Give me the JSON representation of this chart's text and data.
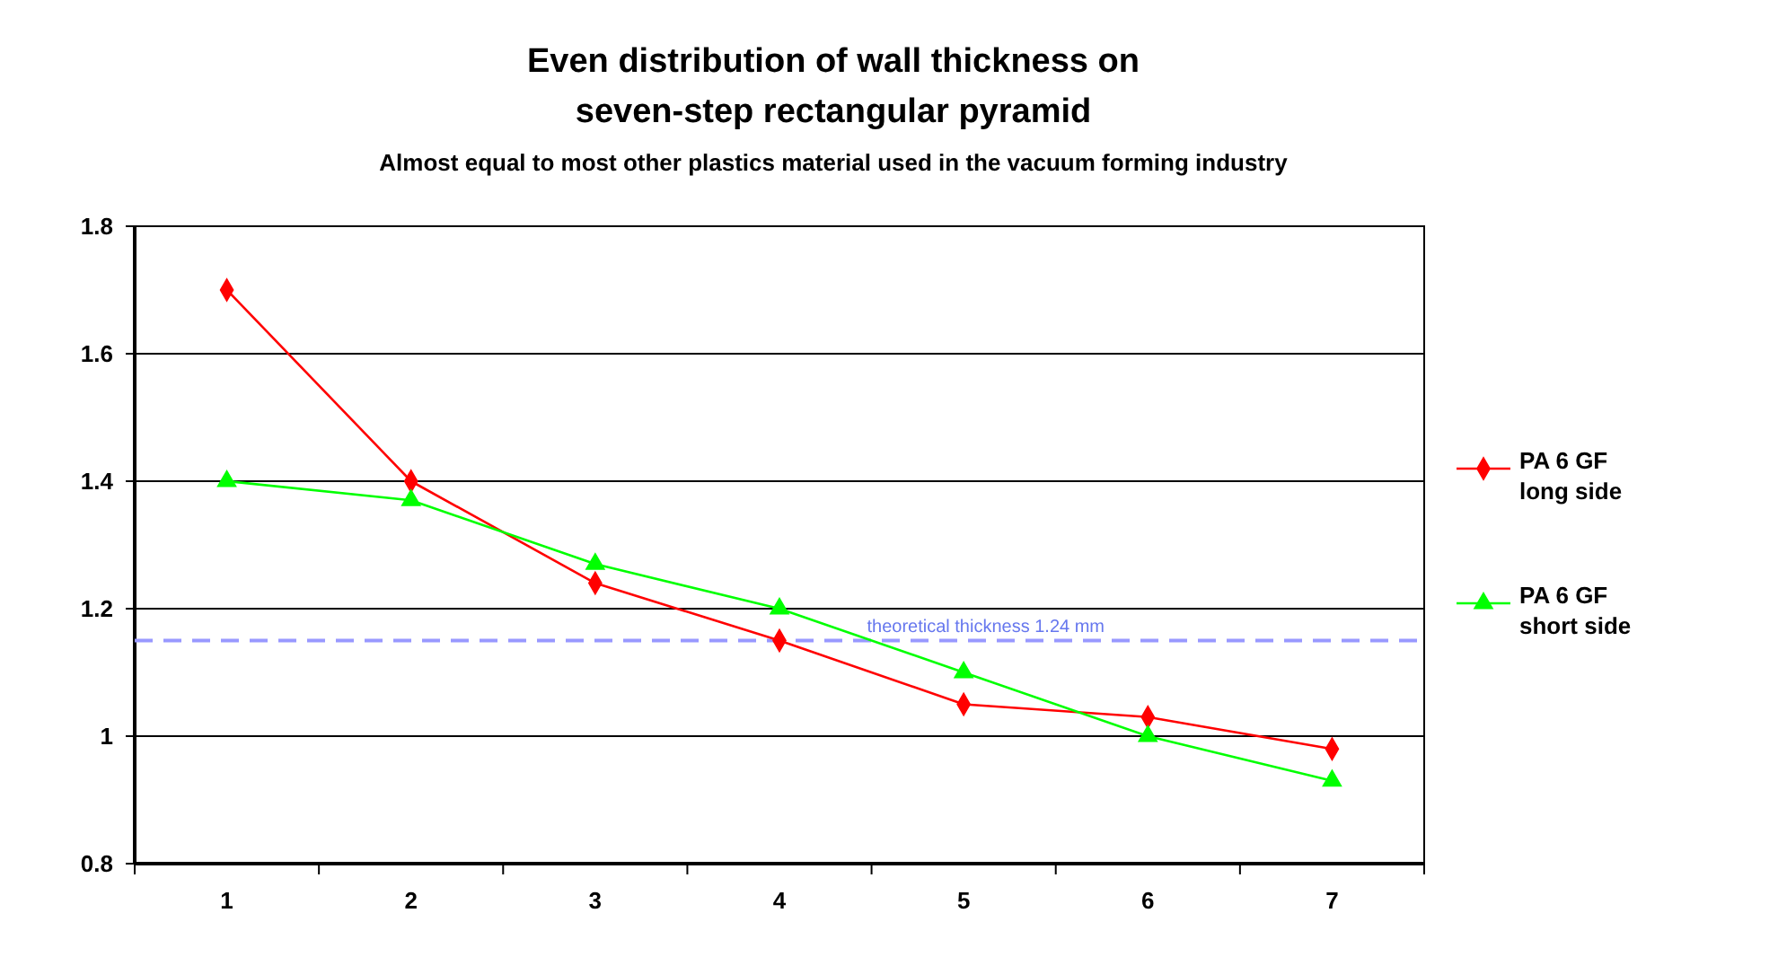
{
  "chart_data": {
    "type": "line",
    "title": "Even distribution of wall thickness on seven-step rectangular pyramid",
    "subtitle": "Almost equal to most other plastics material used in the vacuum forming industry",
    "categories": [
      "1",
      "2",
      "3",
      "4",
      "5",
      "6",
      "7"
    ],
    "series": [
      {
        "name": "PA 6 GF long side",
        "color": "#ff0000",
        "marker": "diamond",
        "values": [
          1.7,
          1.4,
          1.24,
          1.15,
          1.05,
          1.03,
          0.98
        ]
      },
      {
        "name": "PA 6 GF short side",
        "color": "#00ff00",
        "marker": "triangle",
        "values": [
          1.4,
          1.37,
          1.27,
          1.2,
          1.1,
          1.0,
          0.93
        ]
      }
    ],
    "ylim": [
      0.8,
      1.8
    ],
    "yticks": [
      0.8,
      1.0,
      1.2,
      1.4,
      1.6,
      1.8
    ],
    "grid": "y",
    "legend": "right",
    "ref_lines": [
      {
        "axis": "y",
        "value": 1.15,
        "label": "theoretical thickness 1.24 mm",
        "color": "#9999ff",
        "line_style": "dashed"
      }
    ]
  }
}
